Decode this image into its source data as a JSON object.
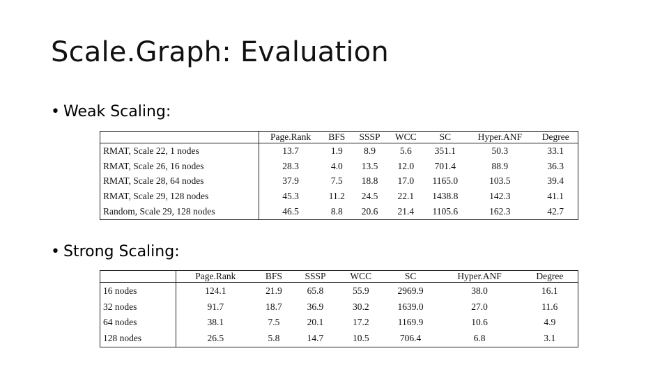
{
  "slide": {
    "title": "Scale.Graph: Evaluation"
  },
  "bullets": {
    "weak": "Weak Scaling:",
    "strong": "Strong Scaling:",
    "marker": "•"
  },
  "weak_table": {
    "columns": [
      "Page.Rank",
      "BFS",
      "SSSP",
      "WCC",
      "SC",
      "Hyper.ANF",
      "Degree"
    ],
    "rows": [
      {
        "label": "RMAT, Scale 22, 1 nodes",
        "values": [
          "13.7",
          "1.9",
          "8.9",
          "5.6",
          "351.1",
          "50.3",
          "33.1"
        ]
      },
      {
        "label": "RMAT, Scale 26, 16 nodes",
        "values": [
          "28.3",
          "4.0",
          "13.5",
          "12.0",
          "701.4",
          "88.9",
          "36.3"
        ]
      },
      {
        "label": "RMAT, Scale 28, 64 nodes",
        "values": [
          "37.9",
          "7.5",
          "18.8",
          "17.0",
          "1165.0",
          "103.5",
          "39.4"
        ]
      },
      {
        "label": "RMAT, Scale 29, 128 nodes",
        "values": [
          "45.3",
          "11.2",
          "24.5",
          "22.1",
          "1438.8",
          "142.3",
          "41.1"
        ]
      },
      {
        "label": "Random, Scale 29, 128 nodes",
        "values": [
          "46.5",
          "8.8",
          "20.6",
          "21.4",
          "1105.6",
          "162.3",
          "42.7"
        ]
      }
    ]
  },
  "strong_table": {
    "columns": [
      "Page.Rank",
      "BFS",
      "SSSP",
      "WCC",
      "SC",
      "Hyper.ANF",
      "Degree"
    ],
    "rows": [
      {
        "label": "16 nodes",
        "values": [
          "124.1",
          "21.9",
          "65.8",
          "55.9",
          "2969.9",
          "38.0",
          "16.1"
        ]
      },
      {
        "label": "32 nodes",
        "values": [
          "91.7",
          "18.7",
          "36.9",
          "30.2",
          "1639.0",
          "27.0",
          "11.6"
        ]
      },
      {
        "label": "64 nodes",
        "values": [
          "38.1",
          "7.5",
          "20.1",
          "17.2",
          "1169.9",
          "10.6",
          "4.9"
        ]
      },
      {
        "label": "128 nodes",
        "values": [
          "26.5",
          "5.8",
          "14.7",
          "10.5",
          "706.4",
          "6.8",
          "3.1"
        ]
      }
    ]
  }
}
